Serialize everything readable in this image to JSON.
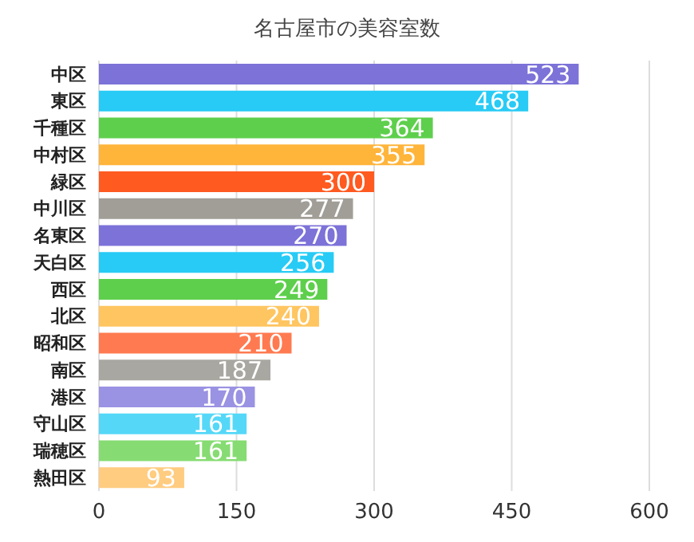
{
  "chart_data": {
    "type": "bar",
    "orientation": "horizontal",
    "title": "名古屋市の美容室数",
    "categories": [
      "中区",
      "東区",
      "千種区",
      "中村区",
      "緑区",
      "中川区",
      "名東区",
      "天白区",
      "西区",
      "北区",
      "昭和区",
      "南区",
      "港区",
      "守山区",
      "瑞穂区",
      "熱田区"
    ],
    "values": [
      523,
      468,
      364,
      355,
      300,
      277,
      270,
      256,
      249,
      240,
      210,
      187,
      170,
      161,
      161,
      93
    ],
    "colors": [
      "#7c72d8",
      "#27cbf5",
      "#5ecf4c",
      "#ffb43a",
      "#ff5a20",
      "#a19e97",
      "#7c72d8",
      "#27cbf5",
      "#5ecf4c",
      "#ffc560",
      "#ff7a50",
      "#a9a7a1",
      "#9a92e2",
      "#55d8f8",
      "#86dc72",
      "#ffcc80"
    ],
    "xlim": [
      0,
      600
    ],
    "xticks": [
      0,
      150,
      300,
      450,
      600
    ],
    "grid": "x",
    "data_labels": true
  }
}
